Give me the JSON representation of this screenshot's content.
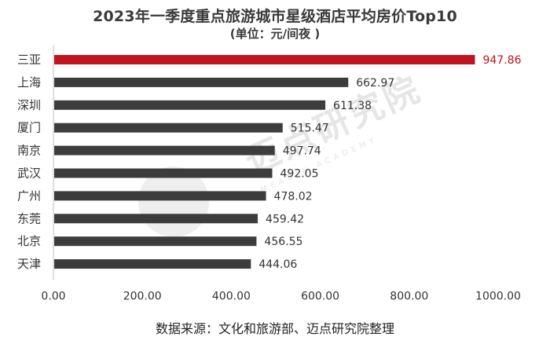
{
  "header": {
    "title": "2023年一季度重点旅游城市星级酒店平均房价Top10",
    "subtitle": "(单位：元/间夜 )"
  },
  "watermark": {
    "name": "迈点研究院",
    "sub": "MEADIN ACADEMY"
  },
  "footer": {
    "source": "数据来源：文化和旅游部、迈点研究院整理"
  },
  "chart_data": {
    "type": "bar",
    "orientation": "horizontal",
    "categories": [
      "三亚",
      "上海",
      "深圳",
      "厦门",
      "南京",
      "武汉",
      "广州",
      "东莞",
      "北京",
      "天津"
    ],
    "values": [
      947.86,
      662.97,
      611.38,
      515.47,
      497.74,
      492.05,
      478.02,
      459.42,
      456.55,
      444.06
    ],
    "value_labels": [
      "947.86",
      "662.97",
      "611.38",
      "515.47",
      "497.74",
      "492.05",
      "478.02",
      "459.42",
      "456.55",
      "444.06"
    ],
    "xlim": [
      0,
      1000
    ],
    "xticks": [
      0,
      200,
      400,
      600,
      800,
      1000
    ],
    "xtick_labels": [
      "0.00",
      "200.00",
      "400.00",
      "600.00",
      "800.00",
      "1000.00"
    ],
    "grid": false,
    "legend": "none",
    "colors": {
      "highlight": "#c0141e",
      "default": "#3c3c3c"
    },
    "highlight_index": 0
  }
}
